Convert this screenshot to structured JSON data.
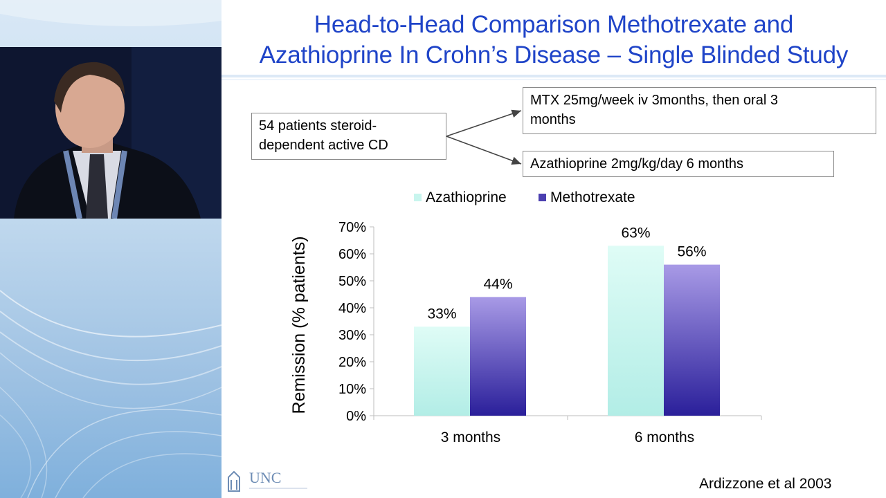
{
  "slide": {
    "title_line1": "Head-to-Head Comparison Methotrexate and",
    "title_line2": "Azathioprine In Crohn’s Disease – Single Blinded Study",
    "box_patients_line1": "54 patients steroid-",
    "box_patients_line2": "dependent active CD",
    "box_mtx_line1": "MTX 25mg/week iv 3months, then oral 3",
    "box_mtx_line2": "months",
    "box_aza": "Azathioprine 2mg/kg/day 6 months",
    "citation": "Ardizzone et al 2003",
    "logo_text": "UNC"
  },
  "chart_data": {
    "type": "bar",
    "categories": [
      "3 months",
      "6 months"
    ],
    "series": [
      {
        "name": "Azathioprine",
        "values": [
          33,
          63
        ],
        "data_labels": [
          "33%",
          "63%"
        ],
        "color": "#c8f5ee"
      },
      {
        "name": "Methotrexate",
        "values": [
          44,
          56
        ],
        "data_labels": [
          "44%",
          "56%"
        ],
        "color": "#4b3fb0"
      }
    ],
    "ylabel": "Remission (% patients)",
    "ylim": [
      0,
      70
    ],
    "yticks": [
      "0%",
      "10%",
      "20%",
      "30%",
      "40%",
      "50%",
      "60%",
      "70%"
    ],
    "legend_position": "top",
    "grid": false
  }
}
